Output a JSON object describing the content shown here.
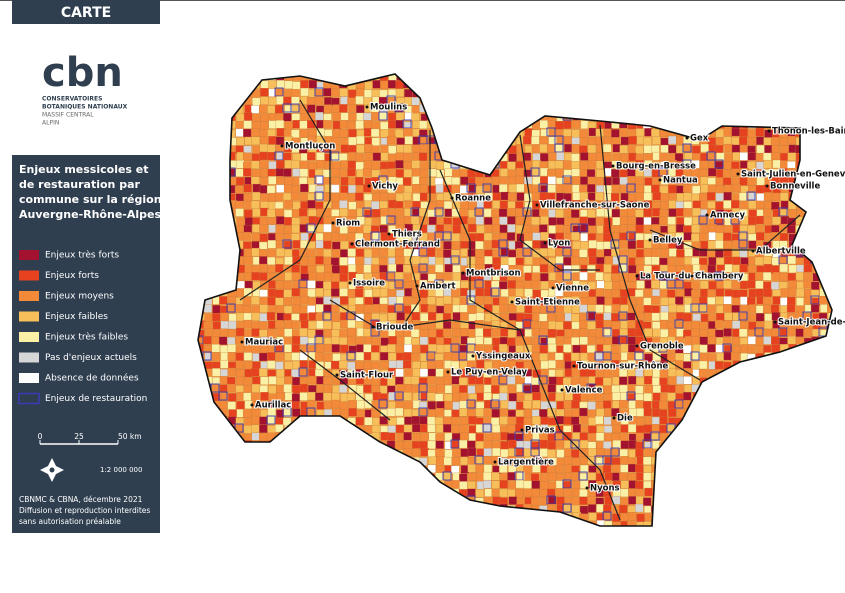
{
  "header": {
    "label": "CARTE"
  },
  "logo": {
    "mark": "cbn",
    "lines": [
      "CONSERVATOIRES",
      "BOTANIQUES NATIONAUX",
      "MASSIF CENTRAL",
      "ALPIN"
    ]
  },
  "panel": {
    "title_lines": [
      "Enjeux messicoles et",
      "de restauration par",
      "commune sur la région",
      "Auvergne-Rhône-Alpes"
    ],
    "legend": [
      {
        "label": "Enjeux très forts",
        "color": "#a3122e"
      },
      {
        "label": "Enjeux forts",
        "color": "#e6421f"
      },
      {
        "label": "Enjeux moyens",
        "color": "#f28a3a"
      },
      {
        "label": "Enjeux faibles",
        "color": "#f7bf5a"
      },
      {
        "label": "Enjeux très faibles",
        "color": "#fbf1a6"
      },
      {
        "label": "Pas d'enjeux actuels",
        "color": "#d6d6d6"
      },
      {
        "label": "Absence de données",
        "color": "#ffffff"
      },
      {
        "label": "Enjeux de restauration",
        "color": "#3b3bb5",
        "outline": true
      }
    ],
    "scale_labels": [
      "0",
      "25",
      "50 km"
    ],
    "scale_ratio": "1:2 000 000",
    "credits": [
      "CBNMC & CBNA, décembre 2021",
      "Diffusion et reproduction interdites",
      "sans autorisation préalable"
    ]
  },
  "map": {
    "cities": [
      "Moulins",
      "Montluçon",
      "Vichy",
      "Roanne",
      "Riom",
      "Thiers",
      "Clermont-Ferrand",
      "Issoire",
      "Ambert",
      "Montbrison",
      "Saint-Etienne",
      "Lyon",
      "Vienne",
      "Villefranche-sur-Saone",
      "Bourg-en-Bresse",
      "Nantua",
      "Gex",
      "Thonon-les-Bains",
      "Saint-Julien-en-Genevois",
      "Bonneville",
      "Annecy",
      "Belley",
      "Albertville",
      "La Tour-du-Pin",
      "Chambery",
      "Saint-Jean-de-Maurienne",
      "Brioude",
      "Mauriac",
      "Aurillac",
      "Saint-Flour",
      "Yssingeaux",
      "Le Puy-en-Velay",
      "Tournon-sur-Rhône",
      "Valence",
      "Grenoble",
      "Privas",
      "Die",
      "Largentière",
      "Nyons"
    ]
  }
}
